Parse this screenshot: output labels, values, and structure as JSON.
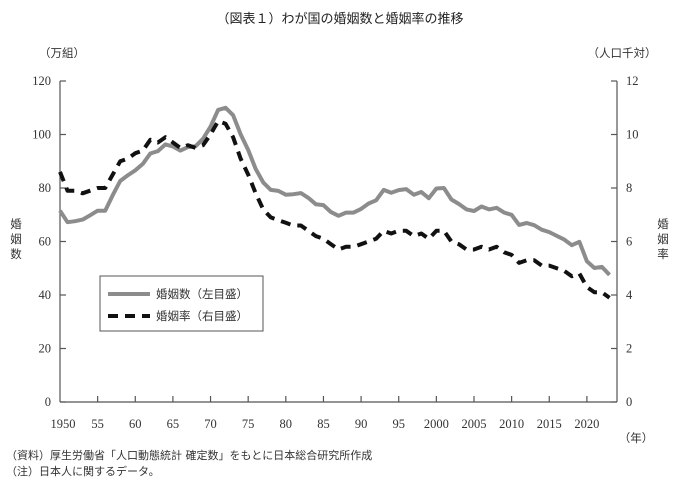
{
  "chart_data": {
    "type": "line",
    "title": "（図表１）わが国の婚姻数と婚姻率の推移",
    "left_unit": "（万組）",
    "right_unit": "（人口千対）",
    "ylabel_left": "婚姻数",
    "ylabel_right": "婚姻率",
    "xlabel_unit": "（年）",
    "x_tick_labels": [
      "1950",
      "55",
      "60",
      "65",
      "70",
      "75",
      "80",
      "85",
      "90",
      "95",
      "2000",
      "2005",
      "2010",
      "2015",
      "2020"
    ],
    "x_ticks": [
      1950,
      1955,
      1960,
      1965,
      1970,
      1975,
      1980,
      1985,
      1990,
      1995,
      2000,
      2005,
      2010,
      2015,
      2020
    ],
    "xlim": [
      1950,
      2024
    ],
    "ylim_left": [
      0,
      120
    ],
    "yticks_left": [
      0,
      20,
      40,
      60,
      80,
      100,
      120
    ],
    "ylim_right": [
      0,
      12
    ],
    "yticks_right": [
      0,
      2,
      4,
      6,
      8,
      10,
      12
    ],
    "grid": false,
    "legend_placement": "center-left",
    "x": [
      1950,
      1951,
      1952,
      1953,
      1954,
      1955,
      1956,
      1957,
      1958,
      1959,
      1960,
      1961,
      1962,
      1963,
      1964,
      1965,
      1966,
      1967,
      1968,
      1969,
      1970,
      1971,
      1972,
      1973,
      1974,
      1975,
      1976,
      1977,
      1978,
      1979,
      1980,
      1981,
      1982,
      1983,
      1984,
      1985,
      1986,
      1987,
      1988,
      1989,
      1990,
      1991,
      1992,
      1993,
      1994,
      1995,
      1996,
      1997,
      1998,
      1999,
      2000,
      2001,
      2002,
      2003,
      2004,
      2005,
      2006,
      2007,
      2008,
      2009,
      2010,
      2011,
      2012,
      2013,
      2014,
      2015,
      2016,
      2017,
      2018,
      2019,
      2020,
      2021,
      2022,
      2023
    ],
    "series": [
      {
        "name": "婚姻数（左目盛）",
        "axis": "left",
        "color": "#8c8c8c",
        "style": "solid",
        "values": [
          71.5,
          67.2,
          67.6,
          68.2,
          69.8,
          71.5,
          71.5,
          77.3,
          82.6,
          84.7,
          86.6,
          89.0,
          92.9,
          93.8,
          96.3,
          95.5,
          94.0,
          95.3,
          95.6,
          98.4,
          102.9,
          109.2,
          110.0,
          107.2,
          100.1,
          94.2,
          87.1,
          82.1,
          79.3,
          78.9,
          77.5,
          77.7,
          78.1,
          76.3,
          73.9,
          73.6,
          71.0,
          69.6,
          70.8,
          70.8,
          72.2,
          74.2,
          75.4,
          79.3,
          78.2,
          79.2,
          79.6,
          77.5,
          78.5,
          76.2,
          79.8,
          80.0,
          75.7,
          74.0,
          72.0,
          71.4,
          73.1,
          72.0,
          72.6,
          70.8,
          70.0,
          66.2,
          66.9,
          66.1,
          64.4,
          63.5,
          62.1,
          60.7,
          58.6,
          59.9,
          52.6,
          50.1,
          50.5,
          47.5
        ]
      },
      {
        "name": "婚姻率（右目盛）",
        "axis": "right",
        "color": "#111111",
        "style": "dashed",
        "values": [
          8.6,
          7.9,
          7.9,
          7.8,
          7.9,
          8.0,
          8.0,
          8.5,
          9.0,
          9.1,
          9.3,
          9.4,
          9.8,
          9.7,
          9.9,
          9.7,
          9.5,
          9.6,
          9.5,
          9.6,
          10.0,
          10.5,
          10.4,
          9.9,
          9.1,
          8.5,
          7.8,
          7.2,
          6.9,
          6.8,
          6.7,
          6.6,
          6.6,
          6.4,
          6.2,
          6.1,
          5.9,
          5.7,
          5.8,
          5.8,
          5.9,
          6.0,
          6.1,
          6.4,
          6.3,
          6.4,
          6.4,
          6.2,
          6.3,
          6.1,
          6.4,
          6.4,
          6.0,
          5.9,
          5.7,
          5.7,
          5.8,
          5.7,
          5.8,
          5.6,
          5.5,
          5.2,
          5.3,
          5.3,
          5.1,
          5.1,
          5.0,
          4.9,
          4.7,
          4.8,
          4.3,
          4.1,
          4.1,
          3.9
        ]
      }
    ]
  },
  "footer": {
    "source": "（資料）厚生労働省「人口動態統計 確定数」をもとに日本総合研究所作成",
    "note": "（注）日本人に関するデータ。"
  }
}
